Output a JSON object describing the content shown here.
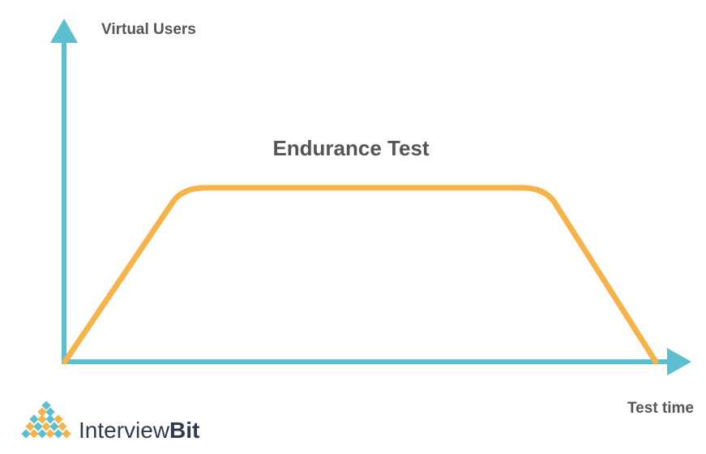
{
  "diagram": {
    "title": "Endurance Test",
    "y_axis_label": "Virtual Users",
    "x_axis_label": "Test time"
  },
  "brand": {
    "name_part1": "Interview",
    "name_part2": "Bit"
  },
  "colors": {
    "axis": "#5bbfd0",
    "curve": "#f6b34a",
    "text": "#555555",
    "logo_dark": "#2e3b4e",
    "logo_orange": "#f6b34a",
    "logo_blue": "#5bbfd0"
  }
}
